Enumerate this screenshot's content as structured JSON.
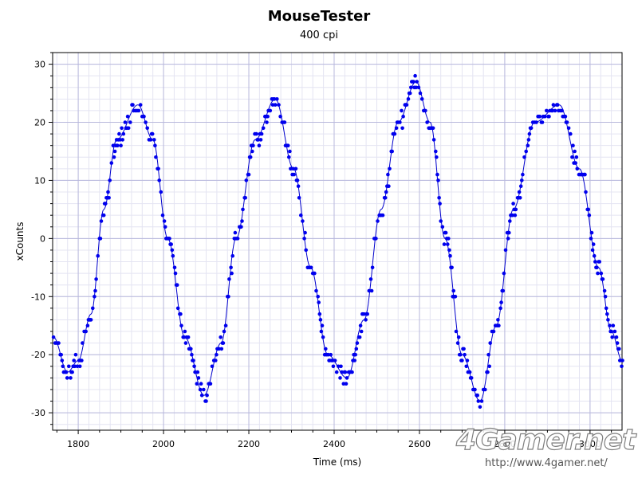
{
  "chart_data": {
    "type": "scatter",
    "title": "MouseTester",
    "subtitle": "400 cpi",
    "xlabel": "Time (ms)",
    "ylabel": "xCounts",
    "xlim": [
      1740,
      3075
    ],
    "ylim": [
      -33,
      32
    ],
    "x_ticks": [
      "1800",
      "2000",
      "2200",
      "2400",
      "2600",
      "2800",
      "3000"
    ],
    "y_ticks": [
      "30",
      "20",
      "10",
      "0",
      "-10",
      "-20",
      "-30"
    ],
    "x_start": 1742,
    "x_end": 3075,
    "sample_interval_ms": 4,
    "grid": true,
    "legend": "none",
    "marker_color": "#0000ee",
    "line_color": "#0000cc",
    "series": [
      {
        "name": "",
        "style": "points + interpolated line",
        "description_points": [
          {
            "x": 1742,
            "y": -17
          },
          {
            "x": 1775,
            "y": -23
          },
          {
            "x": 1800,
            "y": -21
          },
          {
            "x": 1830,
            "y": -13
          },
          {
            "x": 1860,
            "y": 5
          },
          {
            "x": 1890,
            "y": 17
          },
          {
            "x": 1940,
            "y": 23
          },
          {
            "x": 1975,
            "y": 17
          },
          {
            "x": 2010,
            "y": 0
          },
          {
            "x": 2050,
            "y": -17
          },
          {
            "x": 2095,
            "y": -27
          },
          {
            "x": 2135,
            "y": -18
          },
          {
            "x": 2170,
            "y": 0
          },
          {
            "x": 2215,
            "y": 17
          },
          {
            "x": 2262,
            "y": 24
          },
          {
            "x": 2305,
            "y": 12
          },
          {
            "x": 2345,
            "y": -5
          },
          {
            "x": 2385,
            "y": -20
          },
          {
            "x": 2430,
            "y": -24
          },
          {
            "x": 2470,
            "y": -14
          },
          {
            "x": 2510,
            "y": 5
          },
          {
            "x": 2550,
            "y": 20
          },
          {
            "x": 2592,
            "y": 27
          },
          {
            "x": 2625,
            "y": 20
          },
          {
            "x": 2660,
            "y": 0
          },
          {
            "x": 2700,
            "y": -20
          },
          {
            "x": 2742,
            "y": -28
          },
          {
            "x": 2780,
            "y": -15
          },
          {
            "x": 2820,
            "y": 5
          },
          {
            "x": 2870,
            "y": 20
          },
          {
            "x": 2928,
            "y": 23
          },
          {
            "x": 2975,
            "y": 12
          },
          {
            "x": 3020,
            "y": -5
          },
          {
            "x": 3050,
            "y": -16
          },
          {
            "x": 3075,
            "y": -21
          }
        ]
      }
    ]
  },
  "watermark": {
    "logo": "4Gamer.net",
    "url": "http://www.4gamer.net/"
  }
}
